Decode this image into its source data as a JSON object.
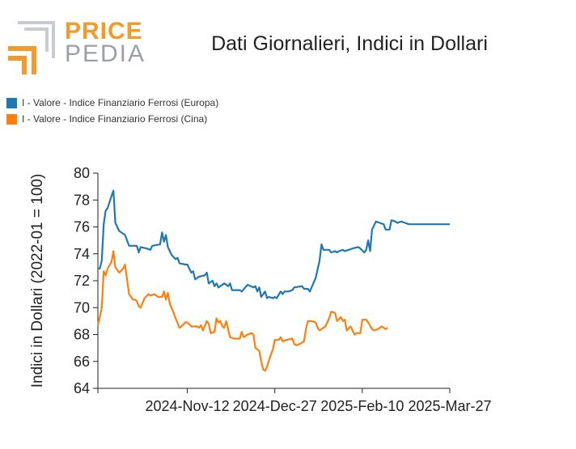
{
  "logo": {
    "top": "PRICE",
    "bottom": "PEDIA"
  },
  "colors": {
    "europe": "#1f77b4",
    "china": "#ff7f0e",
    "logo_orange": "#f39a2b",
    "logo_gray": "#9aa0a6"
  },
  "chart_data": {
    "type": "line",
    "title": "Dati Giornalieri, Indici in Dollari",
    "ylabel": "Indici in Dollari (2022-01 = 100)",
    "xlabel": "",
    "ylim": [
      64,
      80
    ],
    "yticks": [
      64,
      66,
      68,
      70,
      72,
      74,
      76,
      78,
      80
    ],
    "xlim": [
      "2024-09-27",
      "2025-03-27"
    ],
    "xticks": [
      {
        "date": "2024-09-27",
        "label": ""
      },
      {
        "date": "2024-11-12",
        "label": "2024-Nov-12"
      },
      {
        "date": "2024-12-27",
        "label": "2024-Dec-27"
      },
      {
        "date": "2025-02-10",
        "label": "2025-Feb-10"
      },
      {
        "date": "2025-03-27",
        "label": "2025-Mar-27"
      }
    ],
    "grid": false,
    "legend_position": "top-left",
    "series": [
      {
        "name": "I - Valore - Indice Finanziario Ferrosi (Europa)",
        "color": "#1f77b4",
        "points": [
          [
            "2024-09-27",
            72.9
          ],
          [
            "2024-09-28",
            72.9
          ],
          [
            "2024-09-29",
            73.5
          ],
          [
            "2024-09-30",
            76.2
          ],
          [
            "2024-10-01",
            77.2
          ],
          [
            "2024-10-02",
            77.4
          ],
          [
            "2024-10-04",
            78.3
          ],
          [
            "2024-10-05",
            78.7
          ],
          [
            "2024-10-06",
            76.3
          ],
          [
            "2024-10-08",
            75.7
          ],
          [
            "2024-10-11",
            75.4
          ],
          [
            "2024-10-13",
            74.6
          ],
          [
            "2024-10-17",
            74.6
          ],
          [
            "2024-10-18",
            74.1
          ],
          [
            "2024-10-19",
            74.5
          ],
          [
            "2024-10-22",
            74.4
          ],
          [
            "2024-10-24",
            74.3
          ],
          [
            "2024-10-25",
            74.6
          ],
          [
            "2024-10-29",
            74.7
          ],
          [
            "2024-10-30",
            75.6
          ],
          [
            "2024-10-31",
            74.9
          ],
          [
            "2024-11-01",
            75.4
          ],
          [
            "2024-11-02",
            74.5
          ],
          [
            "2024-11-04",
            73.9
          ],
          [
            "2024-11-06",
            73.6
          ],
          [
            "2024-11-07",
            73.7
          ],
          [
            "2024-11-08",
            73.3
          ],
          [
            "2024-11-11",
            73.2
          ],
          [
            "2024-11-12",
            73.2
          ],
          [
            "2024-11-14",
            72.6
          ],
          [
            "2024-11-15",
            72.7
          ],
          [
            "2024-11-16",
            72.1
          ],
          [
            "2024-11-18",
            72.3
          ],
          [
            "2024-11-21",
            72.4
          ],
          [
            "2024-11-22",
            72.6
          ],
          [
            "2024-11-23",
            71.8
          ],
          [
            "2024-11-25",
            72.0
          ],
          [
            "2024-11-26",
            71.6
          ],
          [
            "2024-11-27",
            71.8
          ],
          [
            "2024-11-28",
            71.5
          ],
          [
            "2024-12-01",
            71.8
          ],
          [
            "2024-12-03",
            71.6
          ],
          [
            "2024-12-04",
            71.8
          ],
          [
            "2024-12-05",
            71.3
          ],
          [
            "2024-12-09",
            71.3
          ],
          [
            "2024-12-10",
            71.2
          ],
          [
            "2024-12-13",
            71.7
          ],
          [
            "2024-12-16",
            71.5
          ],
          [
            "2024-12-17",
            71.6
          ],
          [
            "2024-12-18",
            71.2
          ],
          [
            "2024-12-19",
            71.5
          ],
          [
            "2024-12-20",
            70.8
          ],
          [
            "2024-12-22",
            71.2
          ],
          [
            "2024-12-23",
            70.7
          ],
          [
            "2024-12-24",
            70.8
          ],
          [
            "2024-12-26",
            70.7
          ],
          [
            "2024-12-27",
            70.8
          ],
          [
            "2024-12-28",
            70.7
          ],
          [
            "2024-12-30",
            71.2
          ],
          [
            "2024-12-31",
            71.0
          ],
          [
            "2025-01-01",
            71.2
          ],
          [
            "2025-01-03",
            71.2
          ],
          [
            "2025-01-05",
            71.3
          ],
          [
            "2025-01-06",
            71.5
          ],
          [
            "2025-01-10",
            71.6
          ],
          [
            "2025-01-11",
            71.4
          ],
          [
            "2025-01-13",
            71.4
          ],
          [
            "2025-01-14",
            71.2
          ],
          [
            "2025-01-17",
            72.2
          ],
          [
            "2025-01-19",
            73.5
          ],
          [
            "2025-01-20",
            74.7
          ],
          [
            "2025-01-21",
            74.3
          ],
          [
            "2025-01-24",
            74.3
          ],
          [
            "2025-01-25",
            74.1
          ],
          [
            "2025-01-27",
            74.2
          ],
          [
            "2025-01-28",
            74.1
          ],
          [
            "2025-01-29",
            74.2
          ],
          [
            "2025-01-31",
            74.3
          ],
          [
            "2025-02-01",
            74.2
          ],
          [
            "2025-02-03",
            74.3
          ],
          [
            "2025-02-05",
            74.4
          ],
          [
            "2025-02-08",
            74.5
          ],
          [
            "2025-02-09",
            74.4
          ],
          [
            "2025-02-11",
            74.1
          ],
          [
            "2025-02-12",
            74.3
          ],
          [
            "2025-02-13",
            75.0
          ],
          [
            "2025-02-14",
            74.2
          ],
          [
            "2025-02-15",
            75.8
          ],
          [
            "2025-02-17",
            76.4
          ],
          [
            "2025-02-19",
            76.3
          ],
          [
            "2025-02-21",
            76.2
          ],
          [
            "2025-02-22",
            75.8
          ],
          [
            "2025-02-24",
            75.8
          ],
          [
            "2025-02-25",
            76.5
          ],
          [
            "2025-02-27",
            76.4
          ],
          [
            "2025-02-28",
            76.3
          ],
          [
            "2025-03-02",
            76.4
          ],
          [
            "2025-03-04",
            76.3
          ],
          [
            "2025-03-06",
            76.2
          ],
          [
            "2025-03-10",
            76.2
          ],
          [
            "2025-03-14",
            76.2
          ],
          [
            "2025-03-18",
            76.2
          ],
          [
            "2025-03-22",
            76.2
          ],
          [
            "2025-03-27",
            76.2
          ]
        ]
      },
      {
        "name": "I - Valore - Indice Finanziario Ferrosi (Cina)",
        "color": "#ff7f0e",
        "points": [
          [
            "2024-09-27",
            68.7
          ],
          [
            "2024-09-28",
            69.3
          ],
          [
            "2024-09-29",
            70.0
          ],
          [
            "2024-09-30",
            72.7
          ],
          [
            "2024-10-01",
            72.4
          ],
          [
            "2024-10-02",
            72.9
          ],
          [
            "2024-10-04",
            73.4
          ],
          [
            "2024-10-05",
            74.2
          ],
          [
            "2024-10-06",
            73.0
          ],
          [
            "2024-10-08",
            72.6
          ],
          [
            "2024-10-10",
            72.9
          ],
          [
            "2024-10-11",
            73.2
          ],
          [
            "2024-10-13",
            71.0
          ],
          [
            "2024-10-15",
            70.6
          ],
          [
            "2024-10-16",
            70.6
          ],
          [
            "2024-10-17",
            70.5
          ],
          [
            "2024-10-18",
            70.1
          ],
          [
            "2024-10-19",
            70.0
          ],
          [
            "2024-10-21",
            70.7
          ],
          [
            "2024-10-23",
            71.0
          ],
          [
            "2024-10-24",
            70.9
          ],
          [
            "2024-10-26",
            71.0
          ],
          [
            "2024-10-28",
            70.8
          ],
          [
            "2024-10-30",
            70.8
          ],
          [
            "2024-10-31",
            71.2
          ],
          [
            "2024-11-01",
            70.6
          ],
          [
            "2024-11-02",
            71.1
          ],
          [
            "2024-11-03",
            70.3
          ],
          [
            "2024-11-05",
            69.6
          ],
          [
            "2024-11-06",
            69.2
          ],
          [
            "2024-11-08",
            68.5
          ],
          [
            "2024-11-09",
            68.6
          ],
          [
            "2024-11-11",
            68.9
          ],
          [
            "2024-11-12",
            68.9
          ],
          [
            "2024-11-14",
            68.6
          ],
          [
            "2024-11-17",
            68.6
          ],
          [
            "2024-11-18",
            68.5
          ],
          [
            "2024-11-19",
            68.7
          ],
          [
            "2024-11-20",
            68.3
          ],
          [
            "2024-11-22",
            69.0
          ],
          [
            "2024-11-23",
            68.8
          ],
          [
            "2024-11-24",
            68.1
          ],
          [
            "2024-11-26",
            68.2
          ],
          [
            "2024-11-27",
            69.2
          ],
          [
            "2024-11-28",
            68.9
          ],
          [
            "2024-11-29",
            69.0
          ],
          [
            "2024-11-30",
            68.6
          ],
          [
            "2024-12-01",
            68.5
          ],
          [
            "2024-12-02",
            69.0
          ],
          [
            "2024-12-03",
            68.4
          ],
          [
            "2024-12-04",
            67.8
          ],
          [
            "2024-12-06",
            67.7
          ],
          [
            "2024-12-09",
            67.7
          ],
          [
            "2024-12-10",
            68.2
          ],
          [
            "2024-12-11",
            67.8
          ],
          [
            "2024-12-13",
            68.0
          ],
          [
            "2024-12-15",
            68.1
          ],
          [
            "2024-12-16",
            68.0
          ],
          [
            "2024-12-17",
            67.0
          ],
          [
            "2024-12-19",
            66.8
          ],
          [
            "2024-12-20",
            66.0
          ],
          [
            "2024-12-21",
            65.4
          ],
          [
            "2024-12-22",
            65.3
          ],
          [
            "2024-12-23",
            65.6
          ],
          [
            "2024-12-24",
            66.1
          ],
          [
            "2024-12-25",
            66.5
          ],
          [
            "2024-12-26",
            66.9
          ],
          [
            "2024-12-27",
            67.6
          ],
          [
            "2024-12-29",
            67.6
          ],
          [
            "2024-12-30",
            67.8
          ],
          [
            "2024-12-31",
            67.5
          ],
          [
            "2025-01-02",
            67.6
          ],
          [
            "2025-01-05",
            67.7
          ],
          [
            "2025-01-06",
            67.3
          ],
          [
            "2025-01-07",
            67.2
          ],
          [
            "2025-01-09",
            67.3
          ],
          [
            "2025-01-11",
            67.5
          ],
          [
            "2025-01-12",
            68.4
          ],
          [
            "2025-01-13",
            69.0
          ],
          [
            "2025-01-15",
            69.0
          ],
          [
            "2025-01-17",
            68.9
          ],
          [
            "2025-01-18",
            68.5
          ],
          [
            "2025-01-19",
            68.3
          ],
          [
            "2025-01-21",
            68.5
          ],
          [
            "2025-01-22",
            68.6
          ],
          [
            "2025-01-24",
            69.2
          ],
          [
            "2025-01-25",
            69.7
          ],
          [
            "2025-01-27",
            69.6
          ],
          [
            "2025-01-28",
            69.0
          ],
          [
            "2025-01-30",
            69.3
          ],
          [
            "2025-01-31",
            69.0
          ],
          [
            "2025-02-01",
            69.1
          ],
          [
            "2025-02-02",
            68.3
          ],
          [
            "2025-02-04",
            68.6
          ],
          [
            "2025-02-06",
            68.0
          ],
          [
            "2025-02-07",
            68.1
          ],
          [
            "2025-02-09",
            68.1
          ],
          [
            "2025-02-10",
            69.1
          ],
          [
            "2025-02-12",
            69.1
          ],
          [
            "2025-02-13",
            68.9
          ],
          [
            "2025-02-15",
            68.4
          ],
          [
            "2025-02-16",
            68.3
          ],
          [
            "2025-02-18",
            68.4
          ],
          [
            "2025-02-20",
            68.6
          ],
          [
            "2025-02-21",
            68.5
          ],
          [
            "2025-02-22",
            68.4
          ],
          [
            "2025-02-23",
            68.5
          ]
        ]
      }
    ]
  }
}
